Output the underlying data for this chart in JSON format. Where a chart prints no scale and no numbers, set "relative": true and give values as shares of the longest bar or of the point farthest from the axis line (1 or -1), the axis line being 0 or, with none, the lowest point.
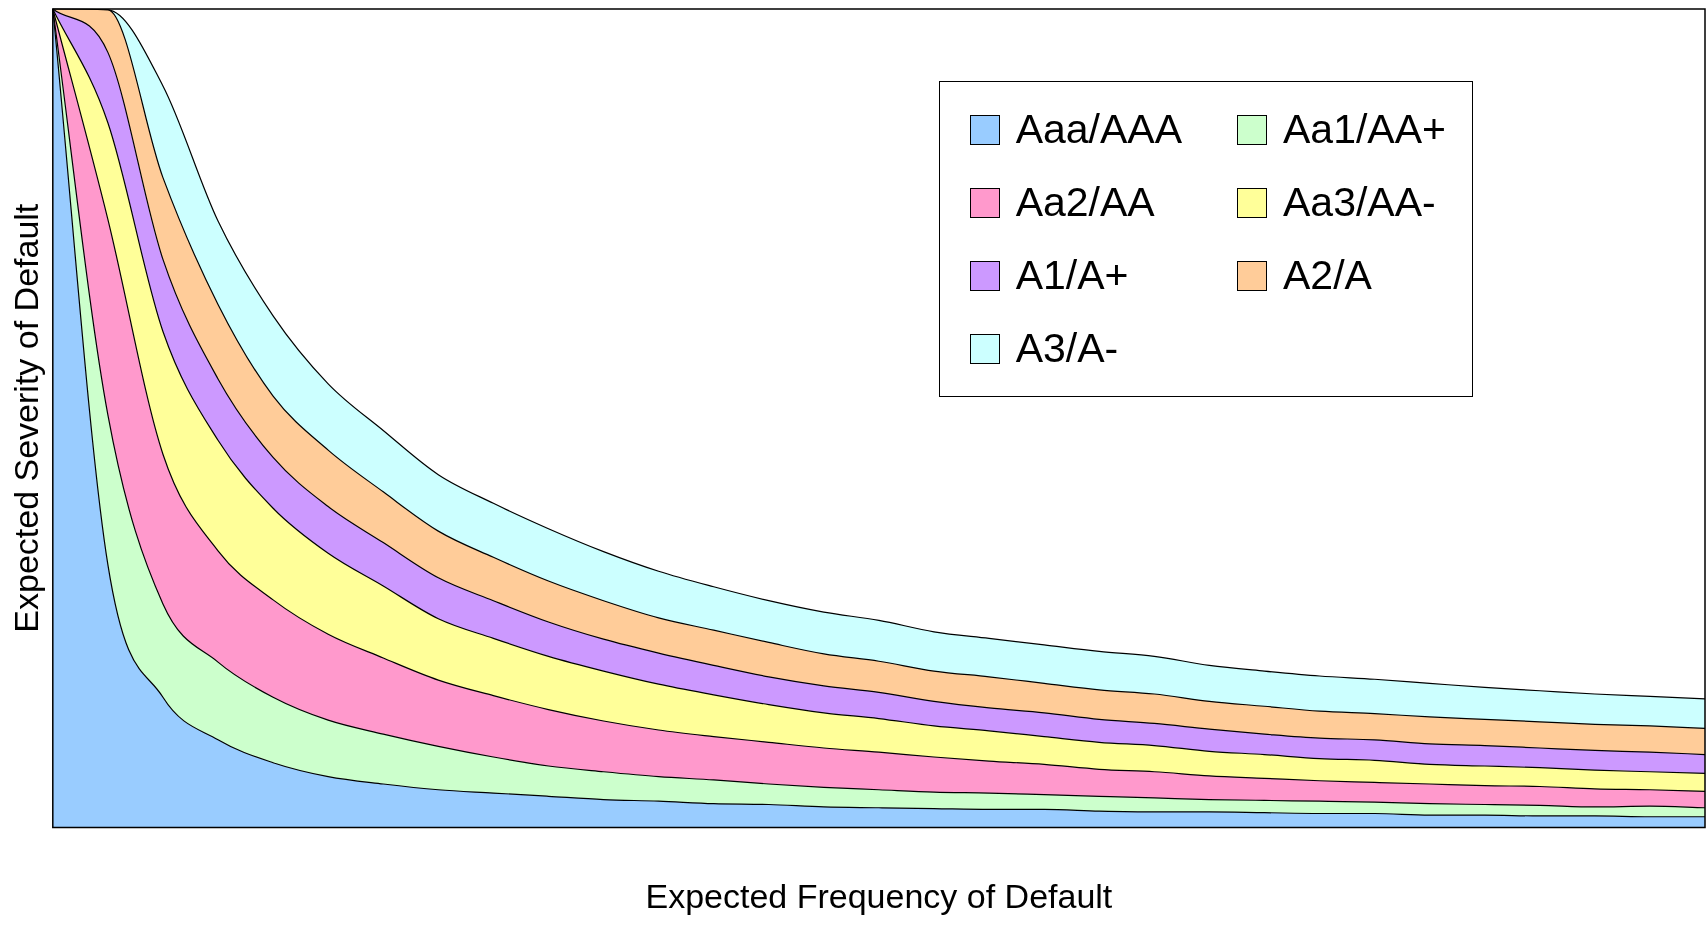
{
  "chart_data": {
    "type": "area",
    "stacked": true,
    "relative": true,
    "xlabel": "Expected Frequency of Default",
    "ylabel": "Expected Severity of Default",
    "legend": "top right",
    "grid": false,
    "categories": [
      null,
      null,
      null,
      null,
      null,
      null,
      null,
      null,
      null,
      null,
      null,
      null,
      null,
      null,
      null,
      null,
      null,
      null,
      null,
      null,
      null,
      null,
      null,
      null,
      null,
      null,
      null,
      null,
      null,
      null,
      null
    ],
    "series": [
      {
        "name": "Aaa/AAA",
        "color": "#99ccff",
        "values": [
          1,
          0.321,
          0.159,
          0.107,
          0.079,
          0.062,
          0.053,
          0.046,
          0.042,
          0.038,
          0.034,
          0.032,
          0.029,
          0.028,
          0.025,
          0.024,
          0.023,
          0.022,
          0.022,
          0.02,
          0.019,
          0.019,
          0.018,
          0.017,
          0.017,
          0.015,
          0.015,
          0.014,
          0.014,
          0.013,
          0.013
        ]
      },
      {
        "name": "Aa1/AA+",
        "color": "#ccffcc",
        "values": [
          0,
          0.183,
          0.114,
          0.095,
          0.08,
          0.069,
          0.061,
          0.053,
          0.044,
          0.037,
          0.034,
          0.03,
          0.029,
          0.025,
          0.024,
          0.022,
          0.02,
          0.02,
          0.018,
          0.018,
          0.017,
          0.015,
          0.015,
          0.015,
          0.014,
          0.014,
          0.013,
          0.013,
          0.011,
          0.013,
          0.011
        ]
      },
      {
        "name": "Aa2/AA",
        "color": "#ff99cc",
        "values": [
          0,
          0.239,
          0.183,
          0.136,
          0.119,
          0.105,
          0.093,
          0.081,
          0.075,
          0.069,
          0.062,
          0.057,
          0.053,
          0.051,
          0.048,
          0.046,
          0.043,
          0.039,
          0.037,
          0.033,
          0.032,
          0.029,
          0.027,
          0.025,
          0.024,
          0.024,
          0.023,
          0.023,
          0.022,
          0.02,
          0.02
        ]
      },
      {
        "name": "Aa3/AA-",
        "color": "#ffff99",
        "values": [
          0,
          0.118,
          0.15,
          0.135,
          0.112,
          0.099,
          0.088,
          0.075,
          0.07,
          0.065,
          0.061,
          0.056,
          0.051,
          0.046,
          0.043,
          0.041,
          0.038,
          0.037,
          0.034,
          0.033,
          0.032,
          0.03,
          0.029,
          0.027,
          0.027,
          0.024,
          0.024,
          0.023,
          0.023,
          0.022,
          0.022
        ]
      },
      {
        "name": "A1/A+",
        "color": "#cc99ff",
        "values": [
          0,
          0.086,
          0.088,
          0.075,
          0.062,
          0.057,
          0.053,
          0.05,
          0.046,
          0.042,
          0.039,
          0.038,
          0.036,
          0.034,
          0.033,
          0.032,
          0.03,
          0.028,
          0.029,
          0.028,
          0.027,
          0.027,
          0.025,
          0.025,
          0.025,
          0.025,
          0.025,
          0.024,
          0.024,
          0.024,
          0.023
        ]
      },
      {
        "name": "A2/A",
        "color": "#ffcc99",
        "values": [
          0,
          0.052,
          0.1,
          0.091,
          0.075,
          0.069,
          0.062,
          0.057,
          0.053,
          0.05,
          0.047,
          0.043,
          0.043,
          0.042,
          0.039,
          0.038,
          0.037,
          0.038,
          0.036,
          0.036,
          0.036,
          0.034,
          0.034,
          0.033,
          0.032,
          0.033,
          0.032,
          0.032,
          0.032,
          0.032,
          0.032
        ]
      },
      {
        "name": "A3/A-",
        "color": "#ccffff",
        "values": [
          0,
          0,
          0.112,
          0.102,
          0.098,
          0.081,
          0.075,
          0.069,
          0.066,
          0.064,
          0.06,
          0.057,
          0.053,
          0.051,
          0.051,
          0.05,
          0.048,
          0.047,
          0.047,
          0.047,
          0.046,
          0.044,
          0.043,
          0.043,
          0.042,
          0.041,
          0.039,
          0.038,
          0.037,
          0.036,
          0.036
        ]
      }
    ]
  }
}
